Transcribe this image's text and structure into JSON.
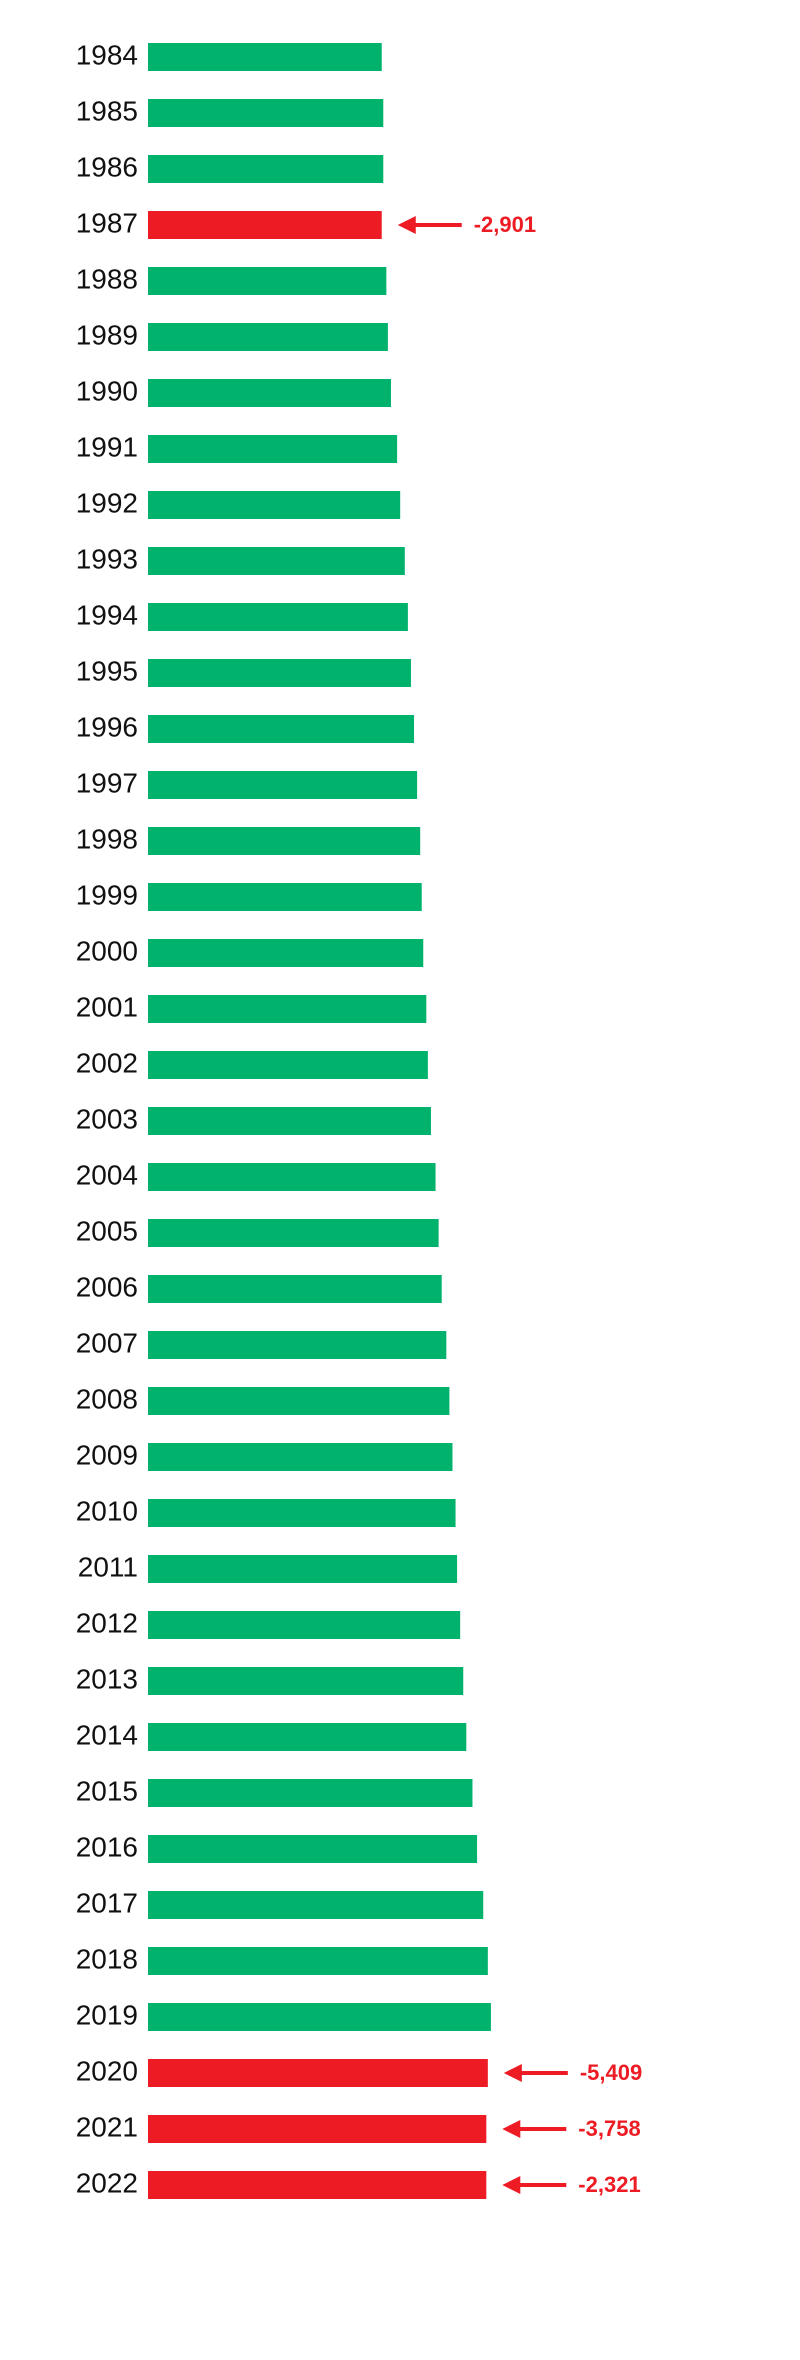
{
  "chart_data": {
    "type": "bar",
    "orientation": "horizontal",
    "categories": [
      "1984",
      "1985",
      "1986",
      "1987",
      "1988",
      "1989",
      "1990",
      "1991",
      "1992",
      "1993",
      "1994",
      "1995",
      "1996",
      "1997",
      "1998",
      "1999",
      "2000",
      "2001",
      "2002",
      "2003",
      "2004",
      "2005",
      "2006",
      "2007",
      "2008",
      "2009",
      "2010",
      "2011",
      "2012",
      "2013",
      "2014",
      "2015",
      "2016",
      "2017",
      "2018",
      "2019",
      "2020",
      "2021",
      "2022"
    ],
    "values": [
      152,
      153,
      153,
      152,
      155,
      156,
      158,
      162,
      164,
      167,
      169,
      171,
      173,
      175,
      177,
      178,
      179,
      181,
      182,
      184,
      187,
      189,
      191,
      194,
      196,
      198,
      200,
      201,
      203,
      205,
      207,
      211,
      214,
      218,
      221,
      223,
      221,
      220,
      220
    ],
    "colors": [
      "#00b26b",
      "#00b26b",
      "#00b26b",
      "#ed1c24",
      "#00b26b",
      "#00b26b",
      "#00b26b",
      "#00b26b",
      "#00b26b",
      "#00b26b",
      "#00b26b",
      "#00b26b",
      "#00b26b",
      "#00b26b",
      "#00b26b",
      "#00b26b",
      "#00b26b",
      "#00b26b",
      "#00b26b",
      "#00b26b",
      "#00b26b",
      "#00b26b",
      "#00b26b",
      "#00b26b",
      "#00b26b",
      "#00b26b",
      "#00b26b",
      "#00b26b",
      "#00b26b",
      "#00b26b",
      "#00b26b",
      "#00b26b",
      "#00b26b",
      "#00b26b",
      "#00b26b",
      "#00b26b",
      "#ed1c24",
      "#ed1c24",
      "#ed1c24"
    ],
    "xlim": [
      0,
      424
    ],
    "annotations": [
      {
        "category": "1987",
        "text": "-2,901",
        "color": "#ed1c24"
      },
      {
        "category": "2020",
        "text": "-5,409",
        "color": "#ed1c24"
      },
      {
        "category": "2021",
        "text": "-3,758",
        "color": "#ed1c24"
      },
      {
        "category": "2022",
        "text": "-2,321",
        "color": "#ed1c24"
      }
    ]
  }
}
